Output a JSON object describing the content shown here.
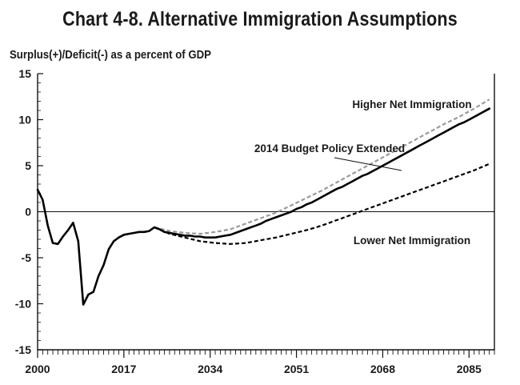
{
  "chart_data": {
    "type": "line",
    "title": "Chart 4-8.  Alternative Immigration Assumptions",
    "ylabel": "Surplus(+)/Deficit(-) as a percent of GDP",
    "xlabel": "",
    "xlim": [
      2000,
      2090
    ],
    "ylim": [
      -15,
      15
    ],
    "x_ticks": [
      "2000",
      "2017",
      "2034",
      "2051",
      "2068",
      "2085"
    ],
    "y_ticks": [
      "15",
      "10",
      "5",
      "0",
      "-5",
      "-10",
      "-15"
    ],
    "zero_line": true,
    "grid": false,
    "series": [
      {
        "name": "2014 Budget Policy Extended",
        "color": "#000000",
        "style": "solid",
        "x": [
          2000,
          2001,
          2002,
          2003,
          2004,
          2005,
          2006,
          2007,
          2008,
          2009,
          2010,
          2011,
          2012,
          2013,
          2014,
          2015,
          2016,
          2017,
          2018,
          2019,
          2020,
          2021,
          2022,
          2023,
          2024,
          2025,
          2026,
          2027,
          2028,
          2029,
          2030,
          2031,
          2032,
          2033,
          2034,
          2035,
          2036,
          2037,
          2038,
          2039,
          2040,
          2041,
          2042,
          2043,
          2044,
          2045,
          2046,
          2047,
          2048,
          2049,
          2050,
          2051,
          2052,
          2053,
          2054,
          2055,
          2056,
          2057,
          2058,
          2059,
          2060,
          2061,
          2062,
          2063,
          2064,
          2065,
          2066,
          2067,
          2068,
          2069,
          2070,
          2071,
          2072,
          2073,
          2074,
          2075,
          2076,
          2077,
          2078,
          2079,
          2080,
          2081,
          2082,
          2083,
          2084,
          2085,
          2086,
          2087,
          2088,
          2089
        ],
        "y": [
          2.4,
          1.3,
          -1.5,
          -3.4,
          -3.5,
          -2.7,
          -2.0,
          -1.2,
          -3.2,
          -10.1,
          -9.0,
          -8.7,
          -7.0,
          -5.8,
          -4.1,
          -3.2,
          -2.8,
          -2.5,
          -2.4,
          -2.3,
          -2.2,
          -2.2,
          -2.1,
          -1.7,
          -1.9,
          -2.2,
          -2.3,
          -2.4,
          -2.5,
          -2.6,
          -2.6,
          -2.7,
          -2.7,
          -2.8,
          -2.8,
          -2.8,
          -2.7,
          -2.6,
          -2.5,
          -2.3,
          -2.1,
          -1.9,
          -1.7,
          -1.5,
          -1.3,
          -1.0,
          -0.8,
          -0.6,
          -0.4,
          -0.2,
          0.0,
          0.3,
          0.5,
          0.8,
          1.0,
          1.3,
          1.6,
          1.9,
          2.2,
          2.5,
          2.7,
          3.0,
          3.3,
          3.6,
          3.9,
          4.1,
          4.4,
          4.7,
          5.0,
          5.3,
          5.6,
          5.9,
          6.2,
          6.5,
          6.8,
          7.1,
          7.4,
          7.7,
          8.0,
          8.3,
          8.6,
          8.9,
          9.2,
          9.5,
          9.7,
          10.0,
          10.3,
          10.6,
          10.9,
          11.2
        ]
      },
      {
        "name": "Higher Net Immigration",
        "color": "#9a9a9a",
        "style": "dashed",
        "x": [
          2023,
          2026,
          2029,
          2032,
          2035,
          2038,
          2041,
          2044,
          2047,
          2050,
          2053,
          2056,
          2059,
          2062,
          2065,
          2068,
          2071,
          2074,
          2077,
          2080,
          2083,
          2086,
          2089
        ],
        "y": [
          -1.7,
          -2.1,
          -2.3,
          -2.4,
          -2.2,
          -1.9,
          -1.3,
          -0.7,
          -0.1,
          0.7,
          1.5,
          2.3,
          3.2,
          4.1,
          5.0,
          5.9,
          6.8,
          7.7,
          8.6,
          9.5,
          10.3,
          11.2,
          12.2
        ]
      },
      {
        "name": "Lower Net Immigration",
        "color": "#000000",
        "style": "dashed",
        "x": [
          2023,
          2026,
          2029,
          2032,
          2035,
          2038,
          2041,
          2044,
          2047,
          2050,
          2053,
          2056,
          2059,
          2062,
          2065,
          2068,
          2071,
          2074,
          2077,
          2080,
          2083,
          2086,
          2089
        ],
        "y": [
          -1.7,
          -2.4,
          -2.8,
          -3.2,
          -3.4,
          -3.5,
          -3.4,
          -3.1,
          -2.8,
          -2.4,
          -2.0,
          -1.5,
          -0.9,
          -0.3,
          0.3,
          0.9,
          1.5,
          2.1,
          2.7,
          3.3,
          3.9,
          4.5,
          5.2
        ]
      }
    ],
    "annotations": [
      {
        "text": "Higher Net Immigration"
      },
      {
        "text": "2014 Budget Policy Extended"
      },
      {
        "text": "Lower Net Immigration"
      }
    ]
  }
}
